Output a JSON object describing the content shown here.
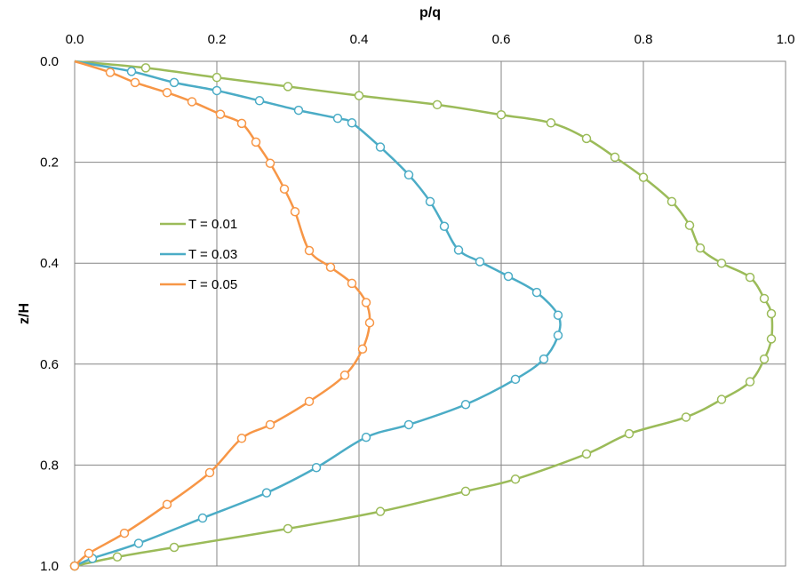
{
  "chart_data": {
    "type": "line",
    "xlabel": "p/q",
    "ylabel": "z/H",
    "x_axis_position": "top",
    "y_axis_inverted": true,
    "xlim": [
      0,
      1
    ],
    "ylim": [
      0,
      1
    ],
    "x_ticks": [
      "0.0",
      "0.2",
      "0.4",
      "0.6",
      "0.8",
      "1.0"
    ],
    "y_ticks": [
      "0.0",
      "0.2",
      "0.4",
      "0.6",
      "0.8",
      "1.0"
    ],
    "grid": true,
    "legend_position": "middle-left",
    "series": [
      {
        "name": "T = 0.01",
        "color": "#9bbb59",
        "points": [
          [
            0,
            0
          ],
          [
            0.1,
            0.013
          ],
          [
            0.2,
            0.032
          ],
          [
            0.3,
            0.05
          ],
          [
            0.4,
            0.068
          ],
          [
            0.51,
            0.086
          ],
          [
            0.6,
            0.106
          ],
          [
            0.67,
            0.122
          ],
          [
            0.72,
            0.153
          ],
          [
            0.76,
            0.19
          ],
          [
            0.8,
            0.23
          ],
          [
            0.84,
            0.278
          ],
          [
            0.865,
            0.325
          ],
          [
            0.88,
            0.37
          ],
          [
            0.91,
            0.4
          ],
          [
            0.95,
            0.428
          ],
          [
            0.97,
            0.47
          ],
          [
            0.98,
            0.5
          ],
          [
            0.98,
            0.55
          ],
          [
            0.97,
            0.59
          ],
          [
            0.95,
            0.635
          ],
          [
            0.91,
            0.67
          ],
          [
            0.86,
            0.705
          ],
          [
            0.78,
            0.738
          ],
          [
            0.72,
            0.778
          ],
          [
            0.62,
            0.828
          ],
          [
            0.55,
            0.852
          ],
          [
            0.43,
            0.892
          ],
          [
            0.3,
            0.926
          ],
          [
            0.14,
            0.963
          ],
          [
            0.06,
            0.982
          ],
          [
            0,
            1
          ]
        ]
      },
      {
        "name": "T = 0.03",
        "color": "#4bacc6",
        "points": [
          [
            0,
            0
          ],
          [
            0.08,
            0.02
          ],
          [
            0.14,
            0.042
          ],
          [
            0.2,
            0.058
          ],
          [
            0.26,
            0.078
          ],
          [
            0.315,
            0.097
          ],
          [
            0.37,
            0.113
          ],
          [
            0.39,
            0.122
          ],
          [
            0.43,
            0.17
          ],
          [
            0.47,
            0.225
          ],
          [
            0.5,
            0.278
          ],
          [
            0.52,
            0.327
          ],
          [
            0.54,
            0.374
          ],
          [
            0.57,
            0.397
          ],
          [
            0.61,
            0.426
          ],
          [
            0.65,
            0.458
          ],
          [
            0.68,
            0.503
          ],
          [
            0.68,
            0.543
          ],
          [
            0.66,
            0.59
          ],
          [
            0.62,
            0.63
          ],
          [
            0.55,
            0.68
          ],
          [
            0.47,
            0.72
          ],
          [
            0.41,
            0.745
          ],
          [
            0.34,
            0.805
          ],
          [
            0.27,
            0.855
          ],
          [
            0.18,
            0.905
          ],
          [
            0.09,
            0.955
          ],
          [
            0.025,
            0.985
          ],
          [
            0,
            1
          ]
        ]
      },
      {
        "name": "T = 0.05",
        "color": "#f79646",
        "points": [
          [
            0,
            0
          ],
          [
            0.05,
            0.022
          ],
          [
            0.085,
            0.042
          ],
          [
            0.13,
            0.062
          ],
          [
            0.165,
            0.08
          ],
          [
            0.205,
            0.105
          ],
          [
            0.235,
            0.123
          ],
          [
            0.255,
            0.16
          ],
          [
            0.275,
            0.202
          ],
          [
            0.295,
            0.253
          ],
          [
            0.31,
            0.298
          ],
          [
            0.33,
            0.375
          ],
          [
            0.36,
            0.408
          ],
          [
            0.39,
            0.44
          ],
          [
            0.41,
            0.478
          ],
          [
            0.415,
            0.518
          ],
          [
            0.405,
            0.57
          ],
          [
            0.38,
            0.622
          ],
          [
            0.33,
            0.674
          ],
          [
            0.275,
            0.72
          ],
          [
            0.235,
            0.747
          ],
          [
            0.19,
            0.815
          ],
          [
            0.13,
            0.878
          ],
          [
            0.07,
            0.935
          ],
          [
            0.02,
            0.975
          ],
          [
            0,
            1
          ]
        ]
      }
    ]
  }
}
